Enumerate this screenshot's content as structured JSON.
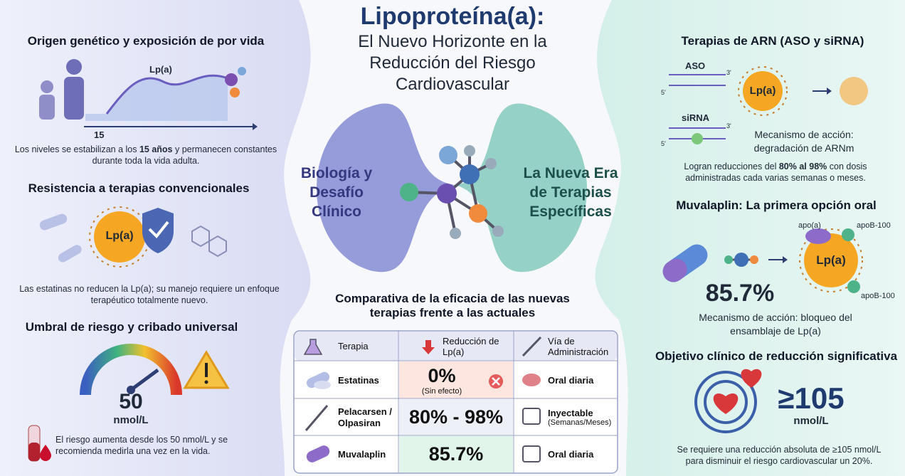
{
  "header": {
    "title": "Lipoproteína(a):",
    "subtitle": "El Nuevo Horizonte en la Reducción del Riesgo Cardiovascular"
  },
  "center": {
    "left_label": "Biología y Desafío Clínico",
    "right_label": "La Nueva Era de Terapias Específicas"
  },
  "left": [
    {
      "title": "Origen genético y exposición de por vida",
      "curve_label": "Lp(a)",
      "age_tick": "15",
      "text": [
        "Los niveles se estabilizan a los ",
        "15 años",
        " y permanecen constantes durante toda la vida adulta."
      ]
    },
    {
      "title": "Resistencia a terapias convencionales",
      "particle_label": "Lp(a)",
      "text": "Las estatinas no reducen la Lp(a); su manejo requiere un enfoque terapéutico totalmente nuevo."
    },
    {
      "title": "Umbral de riesgo y cribado universal",
      "gauge_value": "50",
      "gauge_unit": "nmol/L",
      "text": "El riesgo aumenta desde los 50 nmol/L y se recomienda medirla una vez en la vida."
    }
  ],
  "table": {
    "title": "Comparativa de la eficacia de las nuevas terapias frente a las actuales",
    "headers": [
      "Terapia",
      "Reducción de Lp(a)",
      "Vía de Administración"
    ],
    "rows": [
      {
        "therapy": "Estatinas",
        "reduction": "0%",
        "note": "(Sin efecto)",
        "route": "Oral diaria"
      },
      {
        "therapy": "Pelacarsen / Olpasiran",
        "reduction": "80% - 98%",
        "route": "Inyectable",
        "route_note": "(Semanas/Meses)"
      },
      {
        "therapy": "Muvalaplin",
        "reduction": "85.7%",
        "route": "Oral diaria"
      }
    ]
  },
  "right": [
    {
      "title": "Terapias de ARN (ASO y siRNA)",
      "aso_label": "ASO",
      "sirna_label": "siRNA",
      "end_3": "3'",
      "end_5": "5'",
      "particle_label": "Lp(a)",
      "mechanism": "Mecanismo de acción: degradación de ARNm",
      "text": [
        "Logran reducciones del ",
        "80% al 98%",
        " con dosis administradas cada varias semanas o meses."
      ]
    },
    {
      "title": "Muvalaplin: La primera opción oral",
      "value": "85.7%",
      "apoa_label": "apo(a)",
      "apob_top_label": "apoB-100",
      "apob_bottom_label": "apoB-100",
      "particle_label": "Lp(a)",
      "mechanism": "Mecanismo de acción: bloqueo del ensamblaje de Lp(a)"
    },
    {
      "title": "Objetivo clínico de reducción significativa",
      "value": "≥105",
      "unit": "nmol/L",
      "text": "Se requiere una reducción absoluta de ≥105 nmol/L para disminuir el riesgo cardiovascular un 20%."
    }
  ]
}
